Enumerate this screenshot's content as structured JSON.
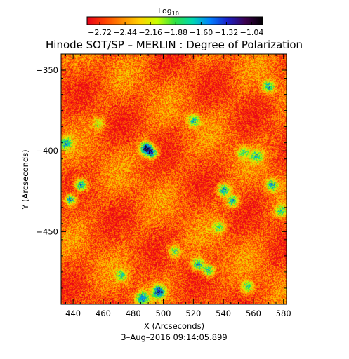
{
  "chart_data": {
    "type": "heatmap",
    "title": "Hinode SOT/SP – MERLIN : Degree of Polarization",
    "xlabel": "X (Arcseconds)",
    "ylabel": "Y (Arcseconds)",
    "footer": "3–Aug–2016 09:14:05.899",
    "xlim": [
      432,
      582
    ],
    "ylim": [
      -495,
      -340
    ],
    "xticks": [
      440,
      460,
      480,
      500,
      520,
      540,
      560,
      580
    ],
    "yticks": [
      -350,
      -400,
      -450
    ],
    "colorbar": {
      "title": "Log",
      "title_subscript": "10",
      "range": [
        -2.86,
        -0.92
      ],
      "ticks": [
        -2.72,
        -2.44,
        -2.16,
        -1.88,
        -1.6,
        -1.32,
        -1.04
      ],
      "colormap": [
        "#e8001a",
        "#ff4000",
        "#ff8c00",
        "#ffd000",
        "#c8ff00",
        "#30e040",
        "#00d8b0",
        "#0080ff",
        "#1a20c8",
        "#3c0050",
        "#000000"
      ]
    },
    "background_level": -2.6,
    "features": [
      {
        "x": 488,
        "y": -398,
        "strength": 1.0
      },
      {
        "x": 492,
        "y": -401,
        "strength": 0.9
      },
      {
        "x": 445,
        "y": -421,
        "strength": 0.9
      },
      {
        "x": 438,
        "y": -430,
        "strength": 0.8
      },
      {
        "x": 435,
        "y": -395,
        "strength": 0.7
      },
      {
        "x": 520,
        "y": -381,
        "strength": 0.7
      },
      {
        "x": 540,
        "y": -424,
        "strength": 0.8
      },
      {
        "x": 546,
        "y": -431,
        "strength": 0.7
      },
      {
        "x": 562,
        "y": -403,
        "strength": 0.6
      },
      {
        "x": 570,
        "y": -360,
        "strength": 0.7
      },
      {
        "x": 572,
        "y": -421,
        "strength": 0.7
      },
      {
        "x": 497,
        "y": -487,
        "strength": 1.0
      },
      {
        "x": 486,
        "y": -491,
        "strength": 0.8
      },
      {
        "x": 523,
        "y": -470,
        "strength": 0.8
      },
      {
        "x": 530,
        "y": -474,
        "strength": 0.7
      },
      {
        "x": 507,
        "y": -462,
        "strength": 0.6
      },
      {
        "x": 556,
        "y": -484,
        "strength": 0.6
      },
      {
        "x": 537,
        "y": -447,
        "strength": 0.5
      },
      {
        "x": 553,
        "y": -401,
        "strength": 0.5
      },
      {
        "x": 457,
        "y": -383,
        "strength": 0.4
      },
      {
        "x": 578,
        "y": -437,
        "strength": 0.5
      },
      {
        "x": 472,
        "y": -477,
        "strength": 0.5
      }
    ]
  }
}
